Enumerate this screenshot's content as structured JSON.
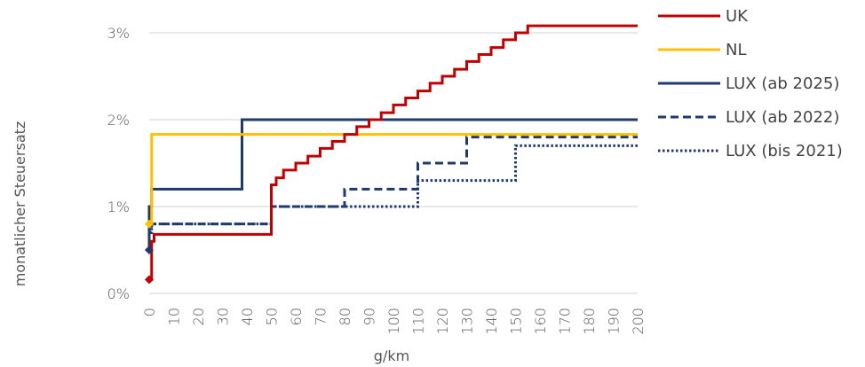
{
  "chart_data": {
    "type": "line",
    "xlabel": "g/km",
    "ylabel": "monatlicher Steuersatz",
    "xlim": [
      0,
      200
    ],
    "ylim": [
      0,
      3.3
    ],
    "x_ticks": [
      0,
      10,
      20,
      30,
      40,
      50,
      60,
      70,
      80,
      90,
      100,
      110,
      120,
      130,
      140,
      150,
      160,
      170,
      180,
      190,
      200
    ],
    "y_ticks": [
      {
        "value": 0,
        "label": "0%"
      },
      {
        "value": 1,
        "label": "1%"
      },
      {
        "value": 2,
        "label": "2%"
      },
      {
        "value": 3,
        "label": "3%"
      }
    ],
    "grid": "horizontal",
    "legend_position": "right",
    "series": [
      {
        "name": "UK",
        "color": "#c00000",
        "dash": "solid",
        "start_marker": {
          "x": 0,
          "y": 0.16
        },
        "points": [
          [
            0,
            0.16
          ],
          [
            1,
            0.16
          ],
          [
            1,
            0.6
          ],
          [
            2,
            0.6
          ],
          [
            2,
            0.68
          ],
          [
            50,
            0.68
          ],
          [
            50,
            1.25
          ],
          [
            52,
            1.25
          ],
          [
            52,
            1.33
          ],
          [
            55,
            1.33
          ],
          [
            55,
            1.42
          ],
          [
            60,
            1.42
          ],
          [
            60,
            1.5
          ],
          [
            65,
            1.5
          ],
          [
            65,
            1.58
          ],
          [
            70,
            1.58
          ],
          [
            70,
            1.67
          ],
          [
            75,
            1.67
          ],
          [
            75,
            1.75
          ],
          [
            80,
            1.75
          ],
          [
            80,
            1.83
          ],
          [
            85,
            1.83
          ],
          [
            85,
            1.92
          ],
          [
            90,
            1.92
          ],
          [
            90,
            2.0
          ],
          [
            95,
            2.0
          ],
          [
            95,
            2.08
          ],
          [
            100,
            2.08
          ],
          [
            100,
            2.17
          ],
          [
            105,
            2.17
          ],
          [
            105,
            2.25
          ],
          [
            110,
            2.25
          ],
          [
            110,
            2.33
          ],
          [
            115,
            2.33
          ],
          [
            115,
            2.42
          ],
          [
            120,
            2.42
          ],
          [
            120,
            2.5
          ],
          [
            125,
            2.5
          ],
          [
            125,
            2.58
          ],
          [
            130,
            2.58
          ],
          [
            130,
            2.67
          ],
          [
            135,
            2.67
          ],
          [
            135,
            2.75
          ],
          [
            140,
            2.75
          ],
          [
            140,
            2.83
          ],
          [
            145,
            2.83
          ],
          [
            145,
            2.92
          ],
          [
            150,
            2.92
          ],
          [
            150,
            3.0
          ],
          [
            155,
            3.0
          ],
          [
            155,
            3.08
          ],
          [
            200,
            3.08
          ]
        ]
      },
      {
        "name": "NL",
        "color": "#ffc000",
        "dash": "solid",
        "start_marker": {
          "x": 0,
          "y": 0.8
        },
        "points": [
          [
            0,
            0.8
          ],
          [
            1,
            0.8
          ],
          [
            1,
            1.83
          ],
          [
            200,
            1.83
          ]
        ]
      },
      {
        "name": "LUX (ab 2025)",
        "color": "#1f3a6e",
        "dash": "solid",
        "start_marker": {
          "x": 0,
          "y": 0.5
        },
        "points": [
          [
            0,
            0.5
          ],
          [
            0,
            1.0
          ],
          [
            1,
            1.0
          ],
          [
            1,
            1.2
          ],
          [
            38,
            1.2
          ],
          [
            38,
            2.0
          ],
          [
            200,
            2.0
          ]
        ]
      },
      {
        "name": "LUX (ab 2022)",
        "color": "#1f3a6e",
        "dash": "dashed",
        "points": [
          [
            0,
            0.5
          ],
          [
            0,
            0.7
          ],
          [
            1,
            0.7
          ],
          [
            1,
            0.8
          ],
          [
            50,
            0.8
          ],
          [
            50,
            1.0
          ],
          [
            80,
            1.0
          ],
          [
            80,
            1.2
          ],
          [
            110,
            1.2
          ],
          [
            110,
            1.5
          ],
          [
            130,
            1.5
          ],
          [
            130,
            1.8
          ],
          [
            200,
            1.8
          ]
        ]
      },
      {
        "name": "LUX (bis 2021)",
        "color": "#1f3a6e",
        "dash": "dotted",
        "points": [
          [
            0,
            0.5
          ],
          [
            0,
            0.7
          ],
          [
            1,
            0.7
          ],
          [
            1,
            0.8
          ],
          [
            50,
            0.8
          ],
          [
            50,
            1.0
          ],
          [
            110,
            1.0
          ],
          [
            110,
            1.3
          ],
          [
            150,
            1.3
          ],
          [
            150,
            1.7
          ],
          [
            200,
            1.7
          ]
        ]
      }
    ]
  }
}
